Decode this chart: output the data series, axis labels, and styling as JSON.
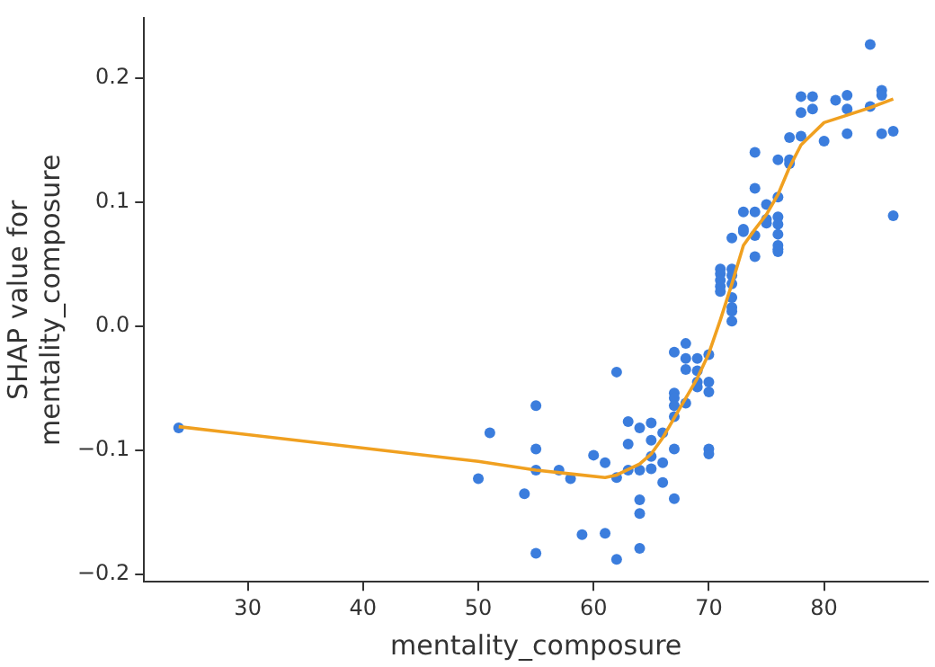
{
  "chart_data": {
    "type": "scatter",
    "xlabel": "mentality_composure",
    "ylabel": "SHAP value for\nmentality_composure",
    "xlim": [
      21,
      89
    ],
    "ylim": [
      -0.206,
      0.248
    ],
    "xticks": [
      30,
      40,
      50,
      60,
      70,
      80
    ],
    "yticks": [
      {
        "value": -0.2,
        "label": "−0.2"
      },
      {
        "value": -0.1,
        "label": "−0.1"
      },
      {
        "value": 0,
        "label": "0.0"
      },
      {
        "value": 0.1,
        "label": "0.1"
      },
      {
        "value": 0.2,
        "label": "0.2"
      }
    ],
    "grid": false,
    "legend": false,
    "series": [
      {
        "color": "#3b7ddd",
        "marker": "circle",
        "x": [
          24,
          50,
          51,
          54,
          55,
          55,
          55,
          55,
          57,
          58,
          59,
          60,
          61,
          61,
          62,
          62,
          62,
          63,
          63,
          63,
          64,
          64,
          64,
          64,
          64,
          65,
          65,
          65,
          65,
          66,
          66,
          66,
          67,
          67,
          67,
          67,
          67,
          67,
          67,
          68,
          68,
          68,
          68,
          69,
          69,
          69,
          69,
          70,
          70,
          70,
          70,
          70,
          71,
          71,
          71,
          71,
          71,
          72,
          72,
          72,
          72,
          72,
          72,
          72,
          72,
          73,
          73,
          73,
          74,
          74,
          74,
          74,
          74,
          75,
          75,
          75,
          76,
          76,
          76,
          76,
          76,
          76,
          76,
          76,
          77,
          77,
          77,
          78,
          78,
          78,
          79,
          79,
          80,
          81,
          82,
          82,
          82,
          84,
          84,
          85,
          85,
          85,
          86,
          86
        ],
        "values": [
          -0.082,
          -0.123,
          -0.086,
          -0.135,
          -0.064,
          -0.099,
          -0.116,
          -0.183,
          -0.116,
          -0.123,
          -0.168,
          -0.104,
          -0.11,
          -0.167,
          -0.037,
          -0.122,
          -0.188,
          -0.077,
          -0.095,
          -0.116,
          -0.082,
          -0.116,
          -0.14,
          -0.151,
          -0.179,
          -0.078,
          -0.092,
          -0.105,
          -0.115,
          -0.086,
          -0.11,
          -0.126,
          -0.021,
          -0.054,
          -0.058,
          -0.064,
          -0.073,
          -0.099,
          -0.139,
          -0.014,
          -0.026,
          -0.035,
          -0.062,
          -0.026,
          -0.036,
          -0.045,
          -0.049,
          -0.023,
          -0.045,
          -0.053,
          -0.099,
          -0.103,
          0.046,
          0.042,
          0.037,
          0.032,
          0.028,
          0.046,
          0.041,
          0.034,
          0.023,
          0.015,
          0.012,
          0.004,
          0.071,
          0.092,
          0.078,
          0.076,
          0.14,
          0.111,
          0.092,
          0.073,
          0.056,
          0.098,
          0.086,
          0.083,
          0.134,
          0.104,
          0.088,
          0.082,
          0.074,
          0.065,
          0.062,
          0.06,
          0.152,
          0.134,
          0.131,
          0.185,
          0.172,
          0.153,
          0.185,
          0.175,
          0.149,
          0.182,
          0.186,
          0.175,
          0.155,
          0.227,
          0.177,
          0.19,
          0.186,
          0.155,
          0.157,
          0.089
        ]
      },
      {
        "type": "line",
        "color": "#f0a020",
        "marker": "none",
        "line_style": "solid",
        "x": [
          24,
          50,
          55,
          58,
          61,
          62,
          64,
          65,
          66,
          67,
          68,
          69,
          70,
          71,
          72,
          73,
          74,
          75,
          76,
          77,
          78,
          79,
          80,
          82,
          84,
          86
        ],
        "values": [
          -0.081,
          -0.109,
          -0.116,
          -0.119,
          -0.122,
          -0.12,
          -0.111,
          -0.103,
          -0.09,
          -0.074,
          -0.058,
          -0.042,
          -0.022,
          0.005,
          0.034,
          0.065,
          0.078,
          0.09,
          0.106,
          0.128,
          0.146,
          0.155,
          0.164,
          0.17,
          0.176,
          0.183
        ]
      }
    ]
  }
}
